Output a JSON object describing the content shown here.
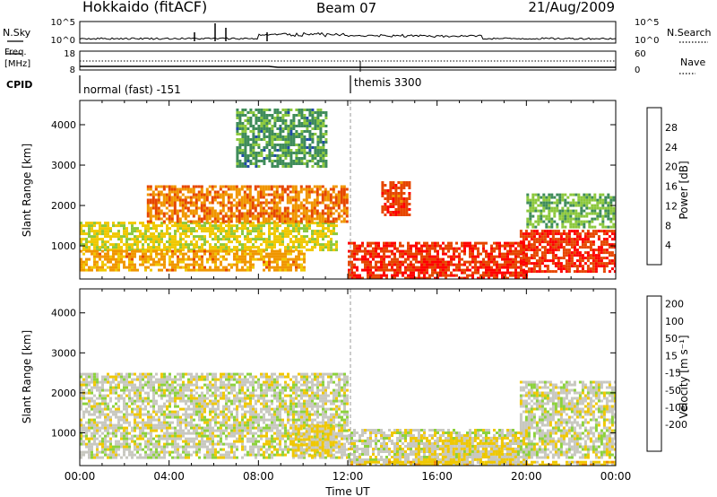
{
  "header": {
    "title": "Hokkaido (fitACF)",
    "beam": "Beam 07",
    "date": "21/Aug/2009"
  },
  "top_panels": {
    "nsky_label": "N.Sky",
    "nsearch_label": "N.Search",
    "freq_label_line1": "Freq.",
    "freq_label_line2": "[MHz]",
    "nave_label": "Nave",
    "cpid_label": "CPID",
    "noise_ticks_left": [
      "10^5",
      "10^0"
    ],
    "noise_ticks_right": [
      "10^5",
      "10^0"
    ],
    "freq_ticks_left": [
      "18",
      "8"
    ],
    "freq_ticks_right": [
      "60",
      "0"
    ],
    "cpid_segments": [
      {
        "label": "normal (fast) -151",
        "start_hour": 0
      },
      {
        "label": "themis 3300",
        "start_hour": 12
      }
    ]
  },
  "axes": {
    "x_label": "Time UT",
    "x_ticks": [
      "00:00",
      "04:00",
      "08:00",
      "12:00",
      "16:00",
      "20:00",
      "00:00"
    ],
    "y_label": "Slant Range [km]",
    "y_ticks": [
      "1000",
      "2000",
      "3000",
      "4000"
    ]
  },
  "colorbars": {
    "power": {
      "label": "Power [dB]",
      "ticks": [
        "4",
        "8",
        "12",
        "16",
        "20",
        "24",
        "28"
      ],
      "colors": [
        "#0000ff",
        "#1f4aa8",
        "#3f8c5a",
        "#8cc83c",
        "#f0c800",
        "#f09600",
        "#e64600",
        "#ff0000"
      ]
    },
    "velocity": {
      "label": "Velocity [m s⁻¹]",
      "ticks": [
        "200",
        "100",
        "50",
        "15",
        "-15",
        "-50",
        "-100",
        "-200"
      ],
      "colors": [
        "#0a28b4",
        "#1e64c8",
        "#32a046",
        "#8cd23c",
        "#c8c8c0",
        "#f0c800",
        "#f08c00",
        "#f04600",
        "#ff0000"
      ]
    }
  },
  "chart_data": [
    {
      "type": "heatmap",
      "title": "Power",
      "xlabel": "Time UT",
      "ylabel": "Slant Range [km]",
      "xlim_hours": [
        0,
        24
      ],
      "ylim_km": [
        180,
        4600
      ],
      "colorbar_label": "Power [dB]",
      "colorbar_range": [
        0,
        30
      ],
      "regions": [
        {
          "t0": 0.0,
          "t1": 11.5,
          "r0": 900,
          "r1": 1600,
          "value": 16
        },
        {
          "t0": 0.0,
          "t1": 10.0,
          "r0": 400,
          "r1": 900,
          "value": 20
        },
        {
          "t0": 3.0,
          "t1": 12.0,
          "r0": 1600,
          "r1": 2500,
          "value": 22
        },
        {
          "t0": 12.0,
          "t1": 20.0,
          "r0": 200,
          "r1": 1100,
          "value": 26
        },
        {
          "t0": 13.5,
          "t1": 14.8,
          "r0": 1800,
          "r1": 2600,
          "value": 25
        },
        {
          "t0": 19.7,
          "t1": 24.0,
          "r0": 400,
          "r1": 1400,
          "value": 26
        },
        {
          "t0": 20.0,
          "t1": 24.0,
          "r0": 1500,
          "r1": 2300,
          "value": 12
        },
        {
          "t0": 7.0,
          "t1": 11.0,
          "r0": 3000,
          "r1": 4400,
          "value": 10
        }
      ]
    },
    {
      "type": "heatmap",
      "title": "Velocity",
      "xlabel": "Time UT",
      "ylabel": "Slant Range [km]",
      "xlim_hours": [
        0,
        24
      ],
      "ylim_km": [
        180,
        4600
      ],
      "colorbar_label": "Velocity [m s⁻¹]",
      "colorbar_range": [
        -200,
        200
      ],
      "regions": [
        {
          "t0": 0.0,
          "t1": 12.0,
          "r0": 400,
          "r1": 2500,
          "value": 0
        },
        {
          "t0": 12.0,
          "t1": 20.0,
          "r0": 200,
          "r1": 1100,
          "value": 0
        },
        {
          "t0": 19.7,
          "t1": 24.0,
          "r0": 400,
          "r1": 2300,
          "value": 0
        },
        {
          "t0": 15.0,
          "t1": 19.5,
          "r0": 200,
          "r1": 900,
          "value": 30
        },
        {
          "t0": 9.5,
          "t1": 11.5,
          "r0": 400,
          "r1": 1200,
          "value": 30
        },
        {
          "t0": 12.0,
          "t1": 24.0,
          "r0": 180,
          "r1": 300,
          "value": 40
        }
      ]
    }
  ]
}
